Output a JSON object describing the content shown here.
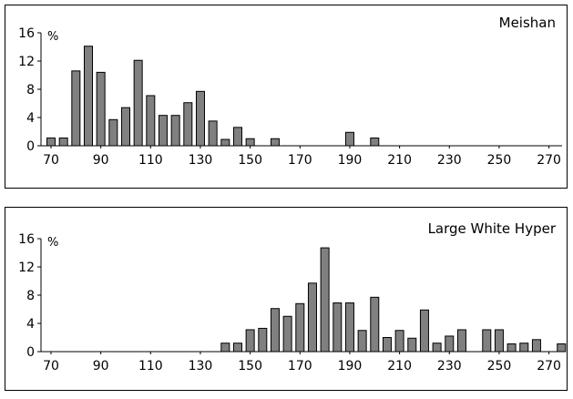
{
  "chart_data": [
    {
      "type": "bar",
      "title": "Meishan",
      "ylabel": "%",
      "xlabel": "",
      "xlim": [
        70,
        280
      ],
      "ylim": [
        0,
        16
      ],
      "bin_width": 5,
      "x_ticks": [
        70,
        90,
        110,
        130,
        150,
        170,
        190,
        210,
        230,
        250,
        270
      ],
      "y_ticks": [
        0,
        4,
        8,
        12,
        16
      ],
      "bar_color": "#808080",
      "grid": false,
      "legend": "none",
      "x": [
        70,
        75,
        80,
        85,
        90,
        95,
        100,
        105,
        110,
        115,
        120,
        125,
        130,
        135,
        140,
        145,
        150,
        160,
        190,
        200
      ],
      "values": [
        1.1,
        1.1,
        10.6,
        14.1,
        10.4,
        3.7,
        5.4,
        12.1,
        7.1,
        4.3,
        4.3,
        6.1,
        7.7,
        3.5,
        0.9,
        2.6,
        1.0,
        1.0,
        1.9,
        1.1
      ]
    },
    {
      "type": "bar",
      "title": "Large White Hyper",
      "ylabel": "%",
      "xlabel": "",
      "xlim": [
        70,
        280
      ],
      "ylim": [
        0,
        16
      ],
      "bin_width": 5,
      "x_ticks": [
        70,
        90,
        110,
        130,
        150,
        170,
        190,
        210,
        230,
        250,
        270
      ],
      "y_ticks": [
        0,
        4,
        8,
        12,
        16
      ],
      "bar_color": "#808080",
      "grid": false,
      "legend": "none",
      "x": [
        140,
        145,
        150,
        155,
        160,
        165,
        170,
        175,
        180,
        185,
        190,
        195,
        200,
        205,
        210,
        215,
        220,
        225,
        230,
        235,
        245,
        250,
        255,
        260,
        265,
        275
      ],
      "values": [
        1.2,
        1.2,
        3.1,
        3.3,
        6.1,
        5.0,
        6.8,
        9.7,
        14.7,
        6.9,
        6.9,
        3.0,
        7.7,
        2.0,
        3.0,
        1.9,
        5.9,
        1.2,
        2.2,
        3.1,
        3.1,
        3.1,
        1.1,
        1.2,
        1.7,
        1.1
      ]
    }
  ]
}
